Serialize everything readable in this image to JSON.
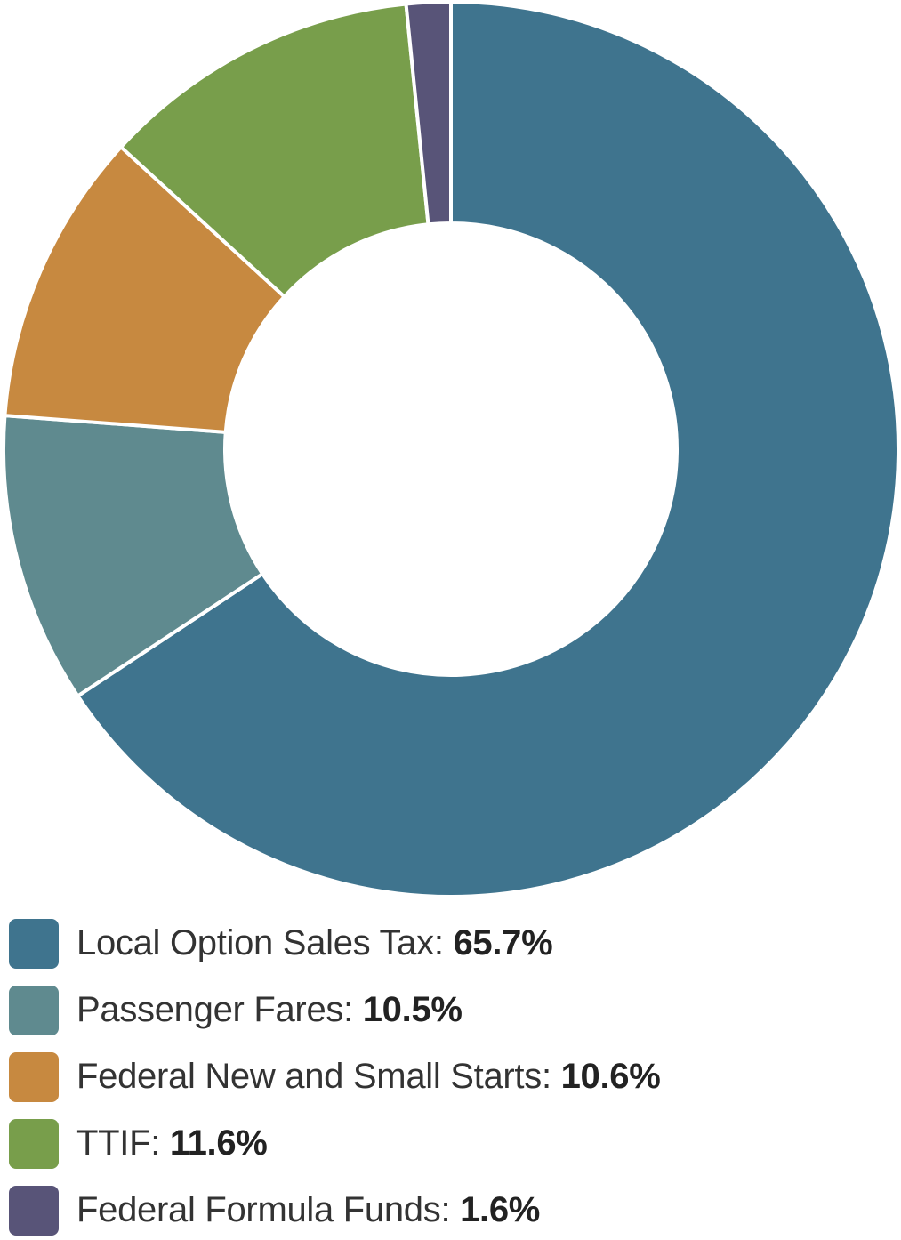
{
  "chart_data": {
    "type": "pie",
    "variant": "donut",
    "title": "",
    "legend_position": "bottom",
    "slices": [
      {
        "label": "Local Option Sales Tax",
        "value": 65.7,
        "value_text": "65.7%",
        "color": "#3f748e"
      },
      {
        "label": "Passenger Fares",
        "value": 10.5,
        "value_text": "10.5%",
        "color": "#5f8a8f"
      },
      {
        "label": "Federal New and Small Starts",
        "value": 10.6,
        "value_text": "10.6%",
        "color": "#c78940"
      },
      {
        "label": "TTIF",
        "value": 11.6,
        "value_text": "11.6%",
        "color": "#789e4b"
      },
      {
        "label": "Federal Formula Funds",
        "value": 1.6,
        "value_text": "1.6%",
        "color": "#585478"
      }
    ]
  }
}
